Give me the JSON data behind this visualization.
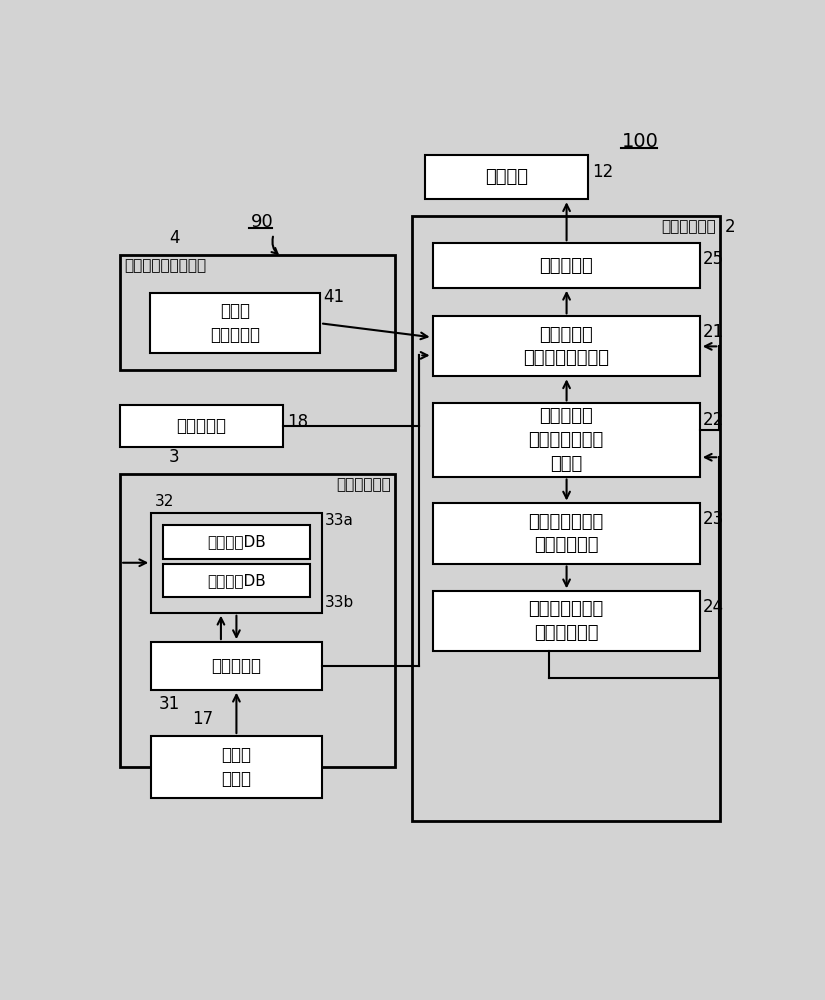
{
  "bg_color": "#d3d3d3",
  "box_fill": "#ffffff",
  "box_edge": "#000000",
  "title_100": "100",
  "title_90": "90",
  "label_4": "4",
  "label_2": "2",
  "label_12": "12",
  "label_18": "18",
  "label_17": "17",
  "label_3": "3",
  "label_21": "21",
  "label_22": "22",
  "label_23": "23",
  "label_24": "24",
  "label_25": "25",
  "label_41": "41",
  "label_31": "31",
  "label_32": "32",
  "label_33a": "33a",
  "label_33b": "33b",
  "text_elevator_ctrl": "电梯控制装置",
  "text_notice_device": "通知装置",
  "text_notice_cmd": "通知指令部",
  "text_max_load_calc": "最大载重时\n负载检测値计算部",
  "text_max_load_judge": "最大载重时\n负载检测値良否\n判定部",
  "text_max_load_correct": "最大载重时负载\n检测値校正部",
  "text_max_load_record": "最大载重时负载\n检测値记录部",
  "text_cabin_load_device": "轿広内负载检测装置",
  "text_cabin_load_detect": "轿広内\n负载检测部",
  "text_maintenance": "维护控制台",
  "text_image_device": "图像识别装置",
  "text_face_db": "脸部图像DB",
  "text_weight_db": "体重信息DB",
  "text_person_judge": "人物判定部",
  "text_cabin_camera": "轿広内\n摄像头"
}
